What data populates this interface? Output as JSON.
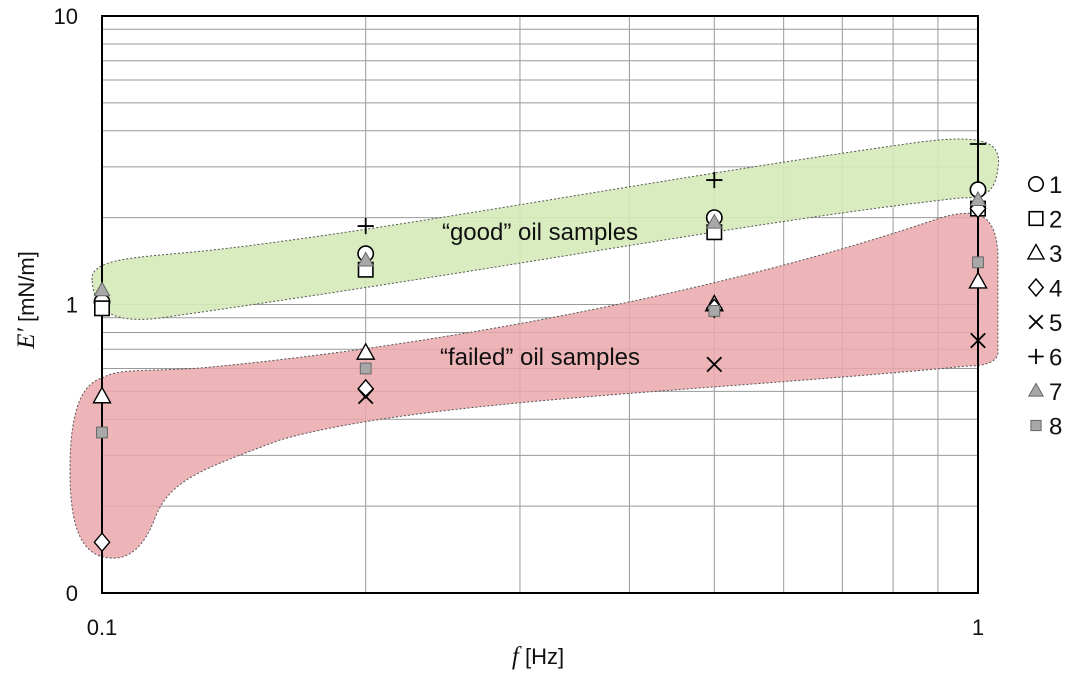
{
  "chart_data": {
    "type": "scatter",
    "x_scale": "log",
    "y_scale": "log",
    "xlim": [
      0.1,
      1
    ],
    "ylim_printed": [
      "0",
      "10"
    ],
    "grid": true,
    "legend_placement": "right",
    "xlabel": {
      "var": "f",
      "unit": " [Hz]"
    },
    "ylabel": {
      "var": "E′",
      "unit": " [mN/m]"
    },
    "x_ticks": [
      {
        "value": 0.1,
        "label": "0.1"
      },
      {
        "value": 1,
        "label": "1"
      }
    ],
    "y_ticks": [
      {
        "value": 0.1,
        "label": "0"
      },
      {
        "value": 1,
        "label": "1"
      },
      {
        "value": 10,
        "label": "10"
      }
    ],
    "regions": [
      {
        "label": "“good” oil samples",
        "color": "#d5eab8"
      },
      {
        "label": "“failed” oil samples",
        "color": "#eba8ab"
      }
    ],
    "series": [
      {
        "name": "1",
        "marker": "circle",
        "x": [
          0.1,
          0.2,
          0.5,
          1
        ],
        "y": [
          1.02,
          1.5,
          2.0,
          2.5
        ]
      },
      {
        "name": "2",
        "marker": "square",
        "x": [
          0.1,
          0.2,
          0.5,
          1
        ],
        "y": [
          0.97,
          1.32,
          1.78,
          2.15
        ]
      },
      {
        "name": "3",
        "marker": "triangle",
        "x": [
          0.1,
          0.2,
          0.5,
          1
        ],
        "y": [
          0.48,
          0.68,
          1.0,
          1.2
        ]
      },
      {
        "name": "4",
        "marker": "diamond",
        "x": [
          0.1,
          0.2,
          0.5,
          1
        ],
        "y": [
          0.15,
          0.51,
          0.97,
          2.15
        ]
      },
      {
        "name": "5",
        "marker": "x",
        "x": [
          0.2,
          0.5,
          1
        ],
        "y": [
          0.48,
          0.62,
          0.75
        ]
      },
      {
        "name": "6",
        "marker": "plus",
        "x": [
          0.2,
          0.5,
          1
        ],
        "y": [
          1.87,
          2.7,
          3.6
        ]
      },
      {
        "name": "7",
        "marker": "gray-triangle",
        "x": [
          0.1,
          0.2,
          0.5,
          1
        ],
        "y": [
          1.12,
          1.42,
          1.92,
          2.3
        ]
      },
      {
        "name": "8",
        "marker": "gray-square",
        "x": [
          0.1,
          0.2,
          0.5,
          1
        ],
        "y": [
          0.36,
          0.6,
          0.95,
          1.4
        ]
      }
    ]
  }
}
